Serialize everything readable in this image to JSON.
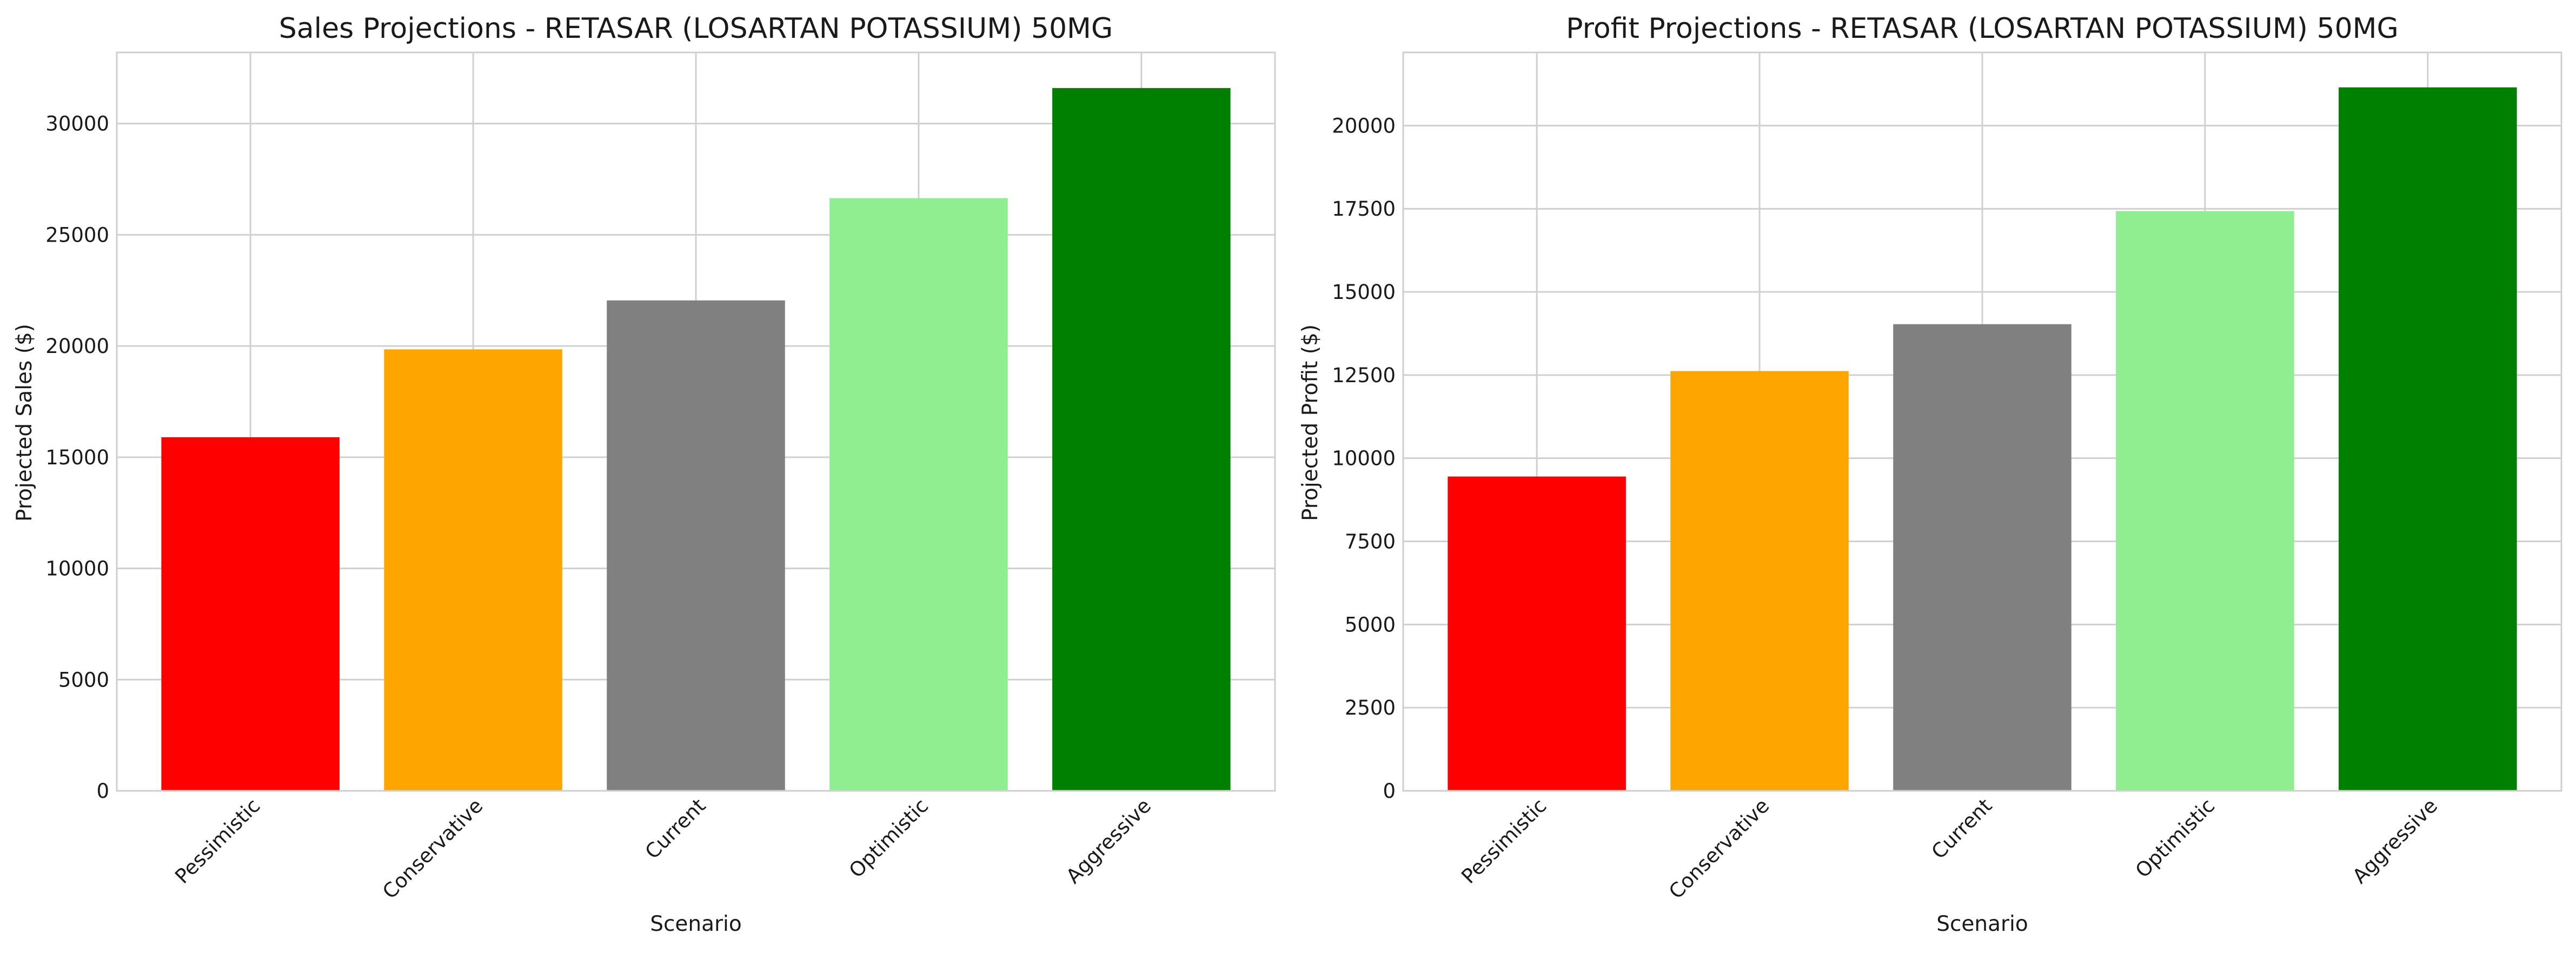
{
  "chart_data": [
    {
      "type": "bar",
      "title": "Sales Projections - RETASAR (LOSARTAN POTASSIUM) 50MG",
      "xlabel": "Scenario",
      "ylabel": "Projected Sales ($)",
      "categories": [
        "Pessimistic",
        "Conservative",
        "Current",
        "Optimistic",
        "Aggressive"
      ],
      "values": [
        15900,
        19850,
        22050,
        26650,
        31600
      ],
      "colors": [
        "#ff0000",
        "#ffa500",
        "#808080",
        "#90ee90",
        "#008000"
      ],
      "ylim": [
        0,
        33200
      ],
      "yticks": [
        0,
        5000,
        10000,
        15000,
        20000,
        25000,
        30000
      ],
      "ytick_labels": [
        "0",
        "5000",
        "10000",
        "15000",
        "20000",
        "25000",
        "30000"
      ],
      "grid": true
    },
    {
      "type": "bar",
      "title": "Profit Projections - RETASAR (LOSARTAN POTASSIUM) 50MG",
      "xlabel": "Scenario",
      "ylabel": "Projected Profit ($)",
      "categories": [
        "Pessimistic",
        "Conservative",
        "Current",
        "Optimistic",
        "Aggressive"
      ],
      "values": [
        9450,
        12620,
        14030,
        17430,
        21150
      ],
      "colors": [
        "#ff0000",
        "#ffa500",
        "#808080",
        "#90ee90",
        "#008000"
      ],
      "ylim": [
        0,
        22200
      ],
      "yticks": [
        0,
        2500,
        5000,
        7500,
        10000,
        12500,
        15000,
        17500,
        20000
      ],
      "ytick_labels": [
        "0",
        "2500",
        "5000",
        "7500",
        "10000",
        "12500",
        "15000",
        "17500",
        "20000"
      ],
      "grid": true
    }
  ]
}
